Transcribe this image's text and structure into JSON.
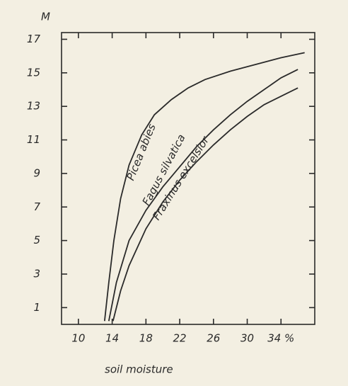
{
  "chart_data": {
    "type": "line",
    "ylabel": "M",
    "xlabel": "soil moisture",
    "xlim": [
      8,
      38
    ],
    "ylim": [
      0,
      17.4
    ],
    "xticks": [
      10,
      14,
      18,
      22,
      26,
      30,
      {
        "value": 34,
        "label": "34 %"
      }
    ],
    "yticks": [
      1,
      3,
      5,
      7,
      9,
      11,
      13,
      15,
      17
    ],
    "series": [
      {
        "name": "Picea abies",
        "color": "#2a2a2a",
        "x": [
          13.1,
          13.6,
          14.2,
          15,
          16,
          17.5,
          19,
          21,
          23,
          25,
          28,
          31,
          34,
          36.8
        ],
        "values": [
          0.2,
          2.5,
          5,
          7.5,
          9.5,
          11.3,
          12.5,
          13.4,
          14.1,
          14.6,
          15.1,
          15.5,
          15.9,
          16.2
        ]
      },
      {
        "name": "Fagus silvatica",
        "color": "#2a2a2a",
        "x": [
          13.6,
          14.5,
          16,
          18,
          20,
          22,
          24,
          26,
          28,
          30,
          32,
          34,
          36
        ],
        "values": [
          0.2,
          2.5,
          5,
          6.8,
          8.2,
          9.4,
          10.6,
          11.6,
          12.5,
          13.3,
          14,
          14.7,
          15.2
        ]
      },
      {
        "name": "Fraxinus excelsior",
        "color": "#2a2a2a",
        "x": [
          14.1,
          15,
          16,
          18,
          20,
          22,
          24,
          26,
          28,
          30,
          32,
          34,
          36
        ],
        "values": [
          0.2,
          2,
          3.5,
          5.7,
          7.3,
          8.6,
          9.7,
          10.7,
          11.6,
          12.4,
          13.1,
          13.6,
          14.1
        ]
      }
    ]
  }
}
